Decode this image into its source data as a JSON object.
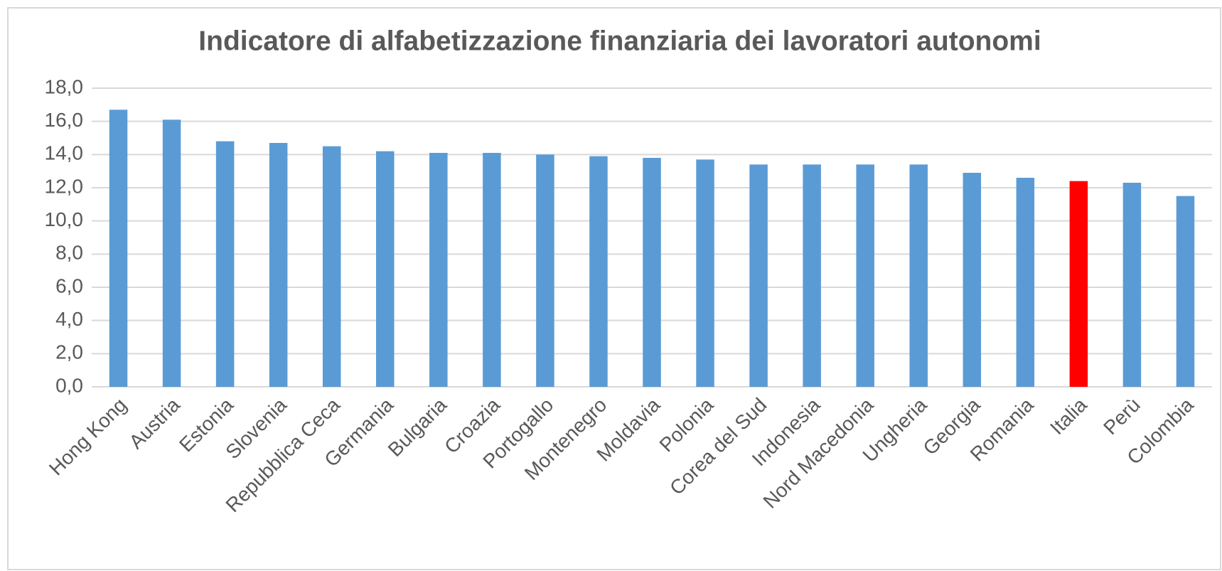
{
  "chart_data": {
    "type": "bar",
    "title": "Indicatore di alfabetizzazione finanziaria dei lavoratori autonomi",
    "categories": [
      "Hong Kong",
      "Austria",
      "Estonia",
      "Slovenia",
      "Repubblica Ceca",
      "Germania",
      "Bulgaria",
      "Croazia",
      "Portogallo",
      "Montenegro",
      "Moldavia",
      "Polonia",
      "Corea del Sud",
      "Indonesia",
      "Nord Macedonia",
      "Ungheria",
      "Georgia",
      "Romania",
      "Italia",
      "Perù",
      "Colombia"
    ],
    "values": [
      16.7,
      16.1,
      14.8,
      14.7,
      14.5,
      14.2,
      14.1,
      14.1,
      14.0,
      13.9,
      13.8,
      13.7,
      13.4,
      13.4,
      13.4,
      13.4,
      12.9,
      12.6,
      12.4,
      12.3,
      11.5
    ],
    "colors": [
      "#5b9bd5",
      "#5b9bd5",
      "#5b9bd5",
      "#5b9bd5",
      "#5b9bd5",
      "#5b9bd5",
      "#5b9bd5",
      "#5b9bd5",
      "#5b9bd5",
      "#5b9bd5",
      "#5b9bd5",
      "#5b9bd5",
      "#5b9bd5",
      "#5b9bd5",
      "#5b9bd5",
      "#5b9bd5",
      "#5b9bd5",
      "#5b9bd5",
      "#ff0000",
      "#5b9bd5",
      "#5b9bd5"
    ],
    "ylim": [
      0,
      18
    ],
    "yticks": [
      {
        "value": 0,
        "label": "0,0"
      },
      {
        "value": 2,
        "label": "2,0"
      },
      {
        "value": 4,
        "label": "4,0"
      },
      {
        "value": 6,
        "label": "6,0"
      },
      {
        "value": 8,
        "label": "8,0"
      },
      {
        "value": 10,
        "label": "10,0"
      },
      {
        "value": 12,
        "label": "12,0"
      },
      {
        "value": 14,
        "label": "14,0"
      },
      {
        "value": 16,
        "label": "16,0"
      },
      {
        "value": 18,
        "label": "18,0"
      }
    ],
    "grid": true
  }
}
